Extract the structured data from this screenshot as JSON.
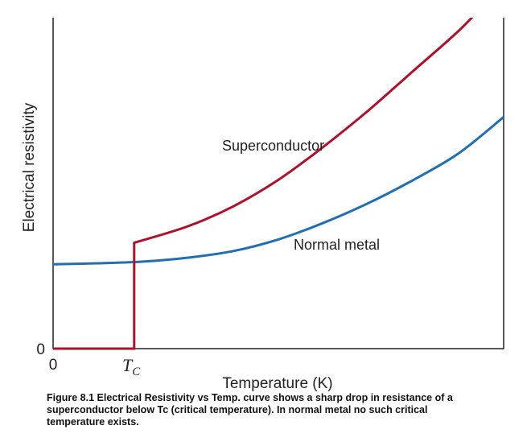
{
  "chart_data": {
    "type": "line",
    "title": "",
    "xlabel": "Temperature (K)",
    "ylabel": "Electrical resistivity",
    "x_tick_labels": [
      "0"
    ],
    "y_tick_labels": [
      "0"
    ],
    "tc_label": "T",
    "tc_subscript": "C",
    "xlim": [
      0,
      10
    ],
    "ylim": [
      0,
      10
    ],
    "grid": false,
    "tc": 1.8,
    "series": [
      {
        "name": "Superconductor",
        "color": "#b0102a",
        "x": [
          0,
          1.8,
          1.8,
          3,
          4,
          5,
          6,
          7,
          8,
          9,
          9.7
        ],
        "y": [
          0,
          0,
          3.2,
          3.7,
          4.3,
          5.1,
          6.1,
          7.2,
          8.4,
          9.6,
          10.6
        ]
      },
      {
        "name": "Normal metal",
        "color": "#1f6fb5",
        "x": [
          0,
          1,
          2,
          3,
          4,
          5,
          6,
          7,
          8,
          9,
          10
        ],
        "y": [
          2.55,
          2.58,
          2.63,
          2.75,
          2.95,
          3.3,
          3.8,
          4.4,
          5.1,
          5.9,
          7.0
        ]
      }
    ]
  },
  "caption": "Figure 8.1  Electrical Resistivity vs Temp. curve shows a sharp drop in resistance of a superconductor below Tc (critical temperature). In normal metal no such critical temperature exists."
}
